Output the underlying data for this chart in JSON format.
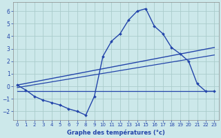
{
  "xlabel": "Graphe des températures (°c)",
  "background_color": "#cce8ea",
  "grid_color": "#aacccc",
  "line_color": "#2244aa",
  "xlim": [
    -0.5,
    23.5
  ],
  "ylim": [
    -2.7,
    6.7
  ],
  "xticks": [
    0,
    1,
    2,
    3,
    4,
    5,
    6,
    7,
    8,
    9,
    10,
    11,
    12,
    13,
    14,
    15,
    16,
    17,
    18,
    19,
    20,
    21,
    22,
    23
  ],
  "yticks": [
    -2,
    -1,
    0,
    1,
    2,
    3,
    4,
    5,
    6
  ],
  "hours": [
    0,
    1,
    2,
    3,
    4,
    5,
    6,
    7,
    8,
    9,
    10,
    11,
    12,
    13,
    14,
    15,
    16,
    17,
    18,
    19,
    20,
    21,
    22,
    23
  ],
  "curve1": [
    0.1,
    -0.3,
    -0.8,
    -1.1,
    -1.3,
    -1.5,
    -1.8,
    -2.0,
    -2.3,
    -0.8,
    2.4,
    3.6,
    4.2,
    5.3,
    6.0,
    6.2,
    4.8,
    4.2,
    3.1,
    2.6,
    2.0,
    0.2,
    -0.4,
    -0.4
  ],
  "trend1_x": [
    0,
    23
  ],
  "trend1_y": [
    0.1,
    3.1
  ],
  "trend2_x": [
    0,
    23
  ],
  "trend2_y": [
    -0.1,
    2.5
  ],
  "trend3_x": [
    0,
    23
  ],
  "trend3_y": [
    -0.4,
    -0.4
  ]
}
